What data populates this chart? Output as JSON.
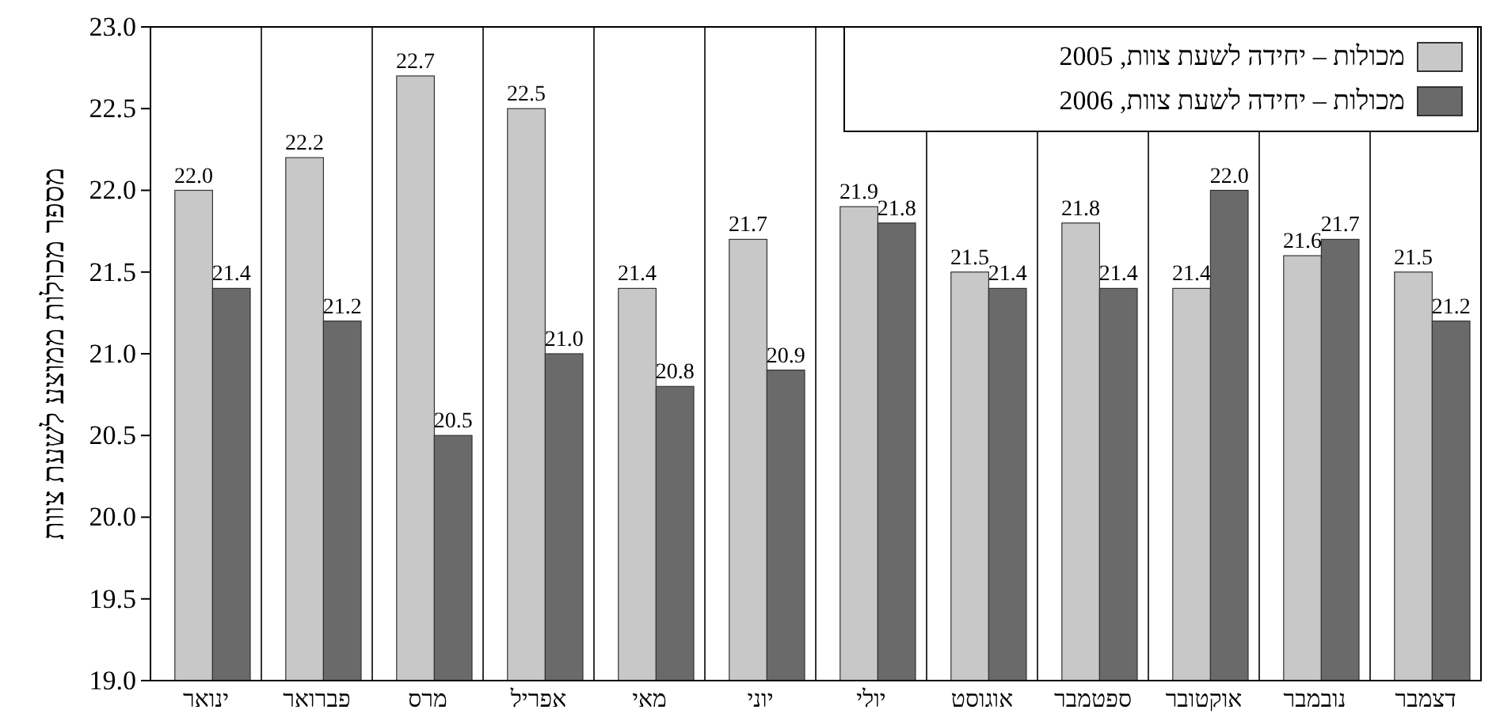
{
  "chart_data": {
    "type": "bar",
    "ylabel": "מספר מכולות ממוצע לשעת צוות",
    "categories": [
      "ינואר",
      "פברואר",
      "מרס",
      "אפריל",
      "מאי",
      "יוני",
      "יולי",
      "אוגוסט",
      "ספטמבר",
      "אוקטובר",
      "נובמבר",
      "דצמבר"
    ],
    "series": [
      {
        "name": "מכולות – יחידה לשעת צוות, 2005",
        "color": "#c8c8c8",
        "values": [
          22.0,
          22.2,
          22.7,
          22.5,
          21.4,
          21.7,
          21.9,
          21.5,
          21.8,
          21.4,
          21.6,
          21.5
        ],
        "value_labels": [
          "22.0",
          "22.2",
          "22.7",
          "22.5",
          "21.4",
          "21.7",
          "21.9",
          "21.5",
          "21.8",
          "21.4",
          "21.6",
          "21.5"
        ]
      },
      {
        "name": "מכולות – יחידה לשעת צוות, 2006",
        "color": "#6a6a6a",
        "values": [
          21.4,
          21.2,
          20.5,
          21.0,
          20.8,
          20.9,
          21.8,
          21.4,
          21.4,
          22.0,
          21.7,
          21.2
        ],
        "value_labels": [
          "21.4",
          "21.2",
          "20.5",
          "21.0",
          "20.8",
          "20.9",
          "21.8",
          "21.4",
          "21.4",
          "22.0",
          "21.7",
          "21.2"
        ]
      }
    ],
    "ylim": [
      19.0,
      23.0
    ],
    "yticks": [
      {
        "value": 19,
        "label": "19.0"
      },
      {
        "value": 19.5,
        "label": "19.5"
      },
      {
        "value": 20,
        "label": "20.0"
      },
      {
        "value": 20.5,
        "label": "20.5"
      },
      {
        "value": 21,
        "label": "21.0"
      },
      {
        "value": 21.5,
        "label": "21.5"
      },
      {
        "value": 22,
        "label": "22.0"
      },
      {
        "value": 22.5,
        "label": "22.5"
      },
      {
        "value": 23,
        "label": "23.0"
      }
    ],
    "grid": "x",
    "legend": "top right"
  }
}
